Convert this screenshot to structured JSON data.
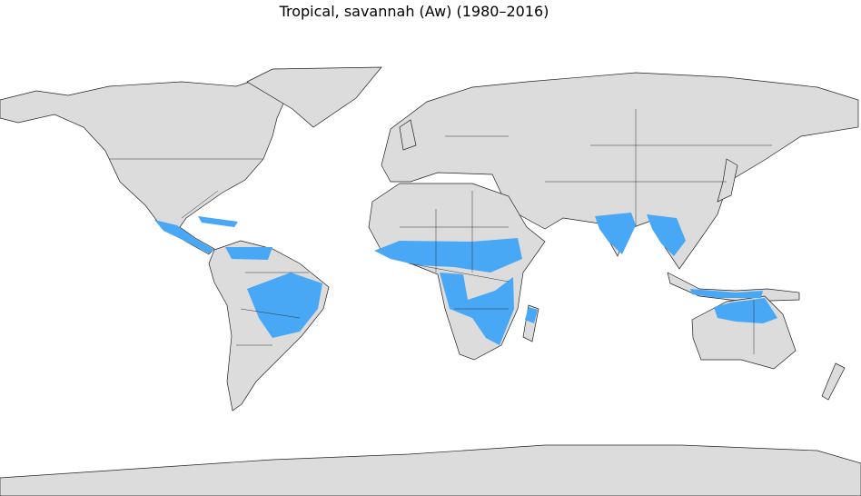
{
  "title": "Tropical, savannah (Aw) (1980–2016)"
}
